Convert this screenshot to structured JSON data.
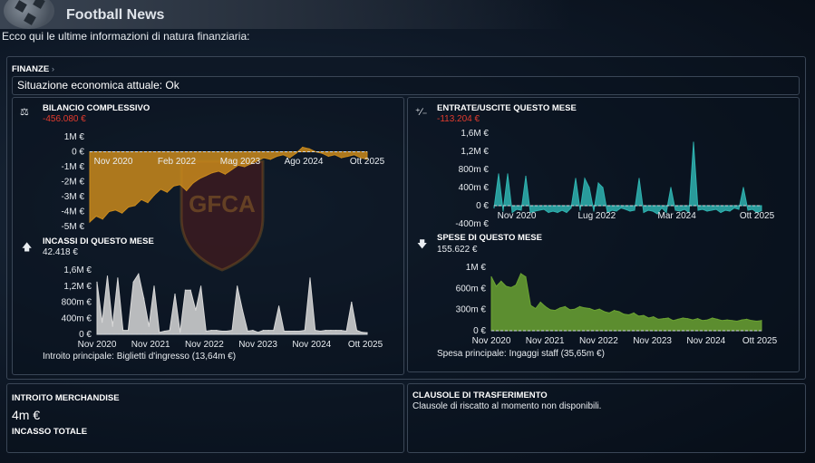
{
  "header": {
    "title": "Football News"
  },
  "intro": "Ecco qui le ultime informazioni di natura finanziaria:",
  "finance": {
    "section_label": "FINANZE",
    "section_arrow": "›",
    "status": "Situazione economica attuale: Ok"
  },
  "crest": {
    "text": "GFCA"
  },
  "charts": {
    "balance": {
      "title": "BILANCIO COMPLESSIVO",
      "value": "-456.080 €",
      "icon": "scale-icon",
      "y_ticks": [
        "1M €",
        "0 €",
        "-1M €",
        "-2M €",
        "-3M €",
        "-4M €",
        "-5M €"
      ],
      "x_ticks": [
        "Nov 2020",
        "Feb 2022",
        "Mag 2023",
        "Ago 2024",
        "Ott 2025"
      ]
    },
    "inout": {
      "title": "ENTRATE/USCITE QUESTO MESE",
      "value": "-113.204 €",
      "icon": "plus-minus-icon",
      "y_ticks": [
        "1,6M €",
        "1,2M €",
        "800m €",
        "400m €",
        "0 €",
        "-400m €"
      ],
      "x_ticks": [
        "Nov 2020",
        "Lug 2022",
        "Mar 2024",
        "Ott 2025"
      ]
    },
    "income": {
      "title": "INCASSI DI QUESTO MESE",
      "value": "42.418 €",
      "icon": "arrow-up-icon",
      "y_ticks": [
        "1,6M €",
        "1,2M €",
        "800m €",
        "400m €",
        "0 €"
      ],
      "x_ticks": [
        "Nov 2020",
        "Nov 2021",
        "Nov 2022",
        "Nov 2023",
        "Nov 2024",
        "Ott 2025"
      ],
      "footer": "Introito principale:  Biglietti d'ingresso (13,64m €)"
    },
    "expenses": {
      "title": "SPESE DI QUESTO MESE",
      "value": "155.622 €",
      "icon": "arrow-down-icon",
      "y_ticks": [
        "1M €",
        "600m €",
        "300m €",
        "0 €"
      ],
      "x_ticks": [
        "Nov 2020",
        "Nov 2021",
        "Nov 2022",
        "Nov 2023",
        "Nov 2024",
        "Ott 2025"
      ],
      "footer": "Spesa principale:  Ingaggi staff (35,65m €)"
    }
  },
  "merch": {
    "title": "INTROITO MERCHANDISE",
    "value": "4m €",
    "subtitle": "INCASSO TOTALE"
  },
  "transfer": {
    "title": "CLAUSOLE DI TRASFERIMENTO",
    "text": "Clausole di riscatto al momento non disponibili."
  },
  "chart_data": [
    {
      "type": "area",
      "title": "BILANCIO COMPLESSIVO",
      "unit": "€ (millions)",
      "ylim": [
        -5,
        1
      ],
      "x_ticks": [
        "Nov 2020",
        "Feb 2022",
        "Mag 2023",
        "Ago 2024",
        "Ott 2025"
      ],
      "values": [
        -4.7,
        -4.3,
        -4.5,
        -4.0,
        -3.9,
        -4.1,
        -3.7,
        -3.6,
        -3.2,
        -3.4,
        -2.9,
        -2.5,
        -2.7,
        -2.3,
        -2.2,
        -2.6,
        -2.1,
        -1.8,
        -1.6,
        -1.4,
        -1.3,
        -1.5,
        -1.2,
        -0.9,
        -1.0,
        -0.8,
        -0.6,
        -0.4,
        -0.5,
        -0.3,
        -0.2,
        -0.4,
        -0.1,
        0.3,
        0.2,
        0.0,
        -0.1,
        -0.3,
        -0.2,
        -0.4,
        -0.3,
        -0.2,
        -0.4,
        -0.5
      ],
      "color": "#c98a1c"
    },
    {
      "type": "area",
      "title": "ENTRATE/USCITE QUESTO MESE",
      "unit": "€ (thousands)",
      "ylim": [
        -400,
        1600
      ],
      "x_ticks": [
        "Nov 2020",
        "Lug 2022",
        "Mar 2024",
        "Ott 2025"
      ],
      "values": [
        -50,
        700,
        -120,
        700,
        -150,
        -80,
        -100,
        650,
        -150,
        -120,
        -100,
        -80,
        -150,
        -120,
        -150,
        -100,
        -150,
        -50,
        600,
        -100,
        600,
        400,
        -120,
        500,
        400,
        -150,
        -100,
        -120,
        -50,
        -80,
        -120,
        -100,
        600,
        -150,
        -100,
        -120,
        -180,
        -50,
        -150,
        400,
        -100,
        -120,
        -80,
        -150,
        1400,
        -100,
        -80,
        -120,
        -100,
        -80,
        -150,
        -100,
        -120,
        -50,
        -80,
        400,
        -100,
        -80,
        -150,
        -110
      ],
      "color": "#2fb3b0"
    },
    {
      "type": "area",
      "title": "INCASSI DI QUESTO MESE",
      "unit": "€ (thousands)",
      "ylim": [
        0,
        1600
      ],
      "x_ticks": [
        "Nov 2020",
        "Nov 2021",
        "Nov 2022",
        "Nov 2023",
        "Nov 2024",
        "Ott 2025"
      ],
      "values": [
        1300,
        300,
        1450,
        200,
        1400,
        100,
        100,
        1300,
        1500,
        900,
        200,
        1200,
        50,
        80,
        100,
        1000,
        50,
        1100,
        1100,
        600,
        1200,
        80,
        100,
        100,
        80,
        80,
        100,
        1200,
        600,
        80,
        100,
        50,
        100,
        100,
        100,
        700,
        80,
        80,
        80,
        80,
        100,
        1400,
        100,
        80,
        100,
        100,
        100,
        100,
        80,
        800,
        100,
        50,
        40
      ],
      "color": "#d8d8d8"
    },
    {
      "type": "area",
      "title": "SPESE DI QUESTO MESE",
      "unit": "€ (thousands)",
      "ylim": [
        0,
        1000
      ],
      "x_ticks": [
        "Nov 2020",
        "Nov 2021",
        "Nov 2022",
        "Nov 2023",
        "Nov 2024",
        "Ott 2025"
      ],
      "values": [
        850,
        700,
        780,
        700,
        680,
        720,
        900,
        850,
        400,
        350,
        450,
        380,
        330,
        320,
        360,
        380,
        330,
        340,
        380,
        360,
        350,
        320,
        340,
        300,
        280,
        320,
        300,
        260,
        250,
        280,
        230,
        240,
        200,
        220,
        180,
        190,
        200,
        160,
        180,
        200,
        190,
        170,
        190,
        160,
        170,
        200,
        180,
        160,
        170,
        160,
        150,
        170,
        180,
        160,
        150,
        160
      ],
      "color": "#6ba332"
    }
  ]
}
